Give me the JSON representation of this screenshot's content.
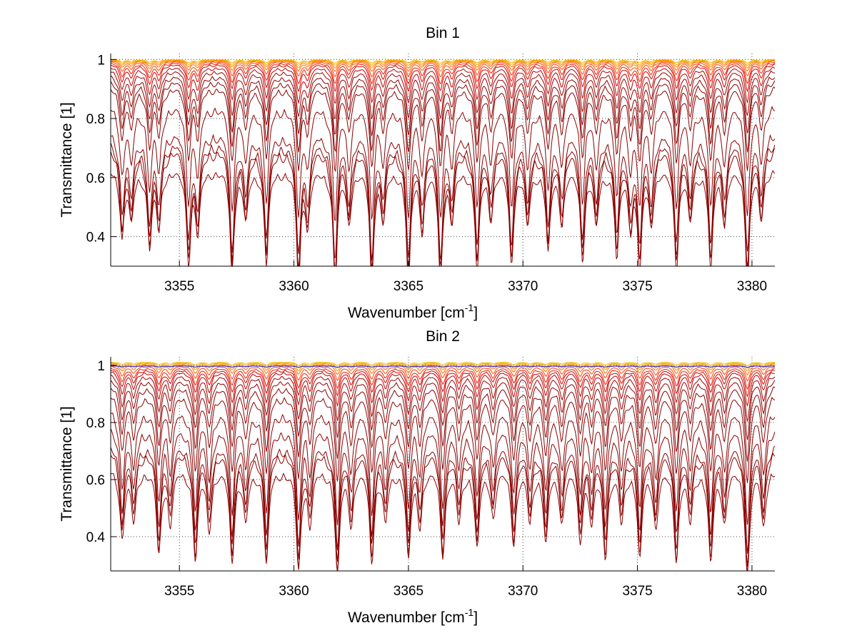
{
  "chart_data": [
    {
      "type": "line",
      "title": "Bin 1",
      "xlabel": "Wavenumber [cm",
      "xlabel_superscript": "-1",
      "xlabel_suffix": "]",
      "ylabel": "Transmittance [1]",
      "xlim": [
        3352,
        3381
      ],
      "ylim": [
        0.3,
        1.02
      ],
      "xticks": [
        3355,
        3360,
        3365,
        3370,
        3375,
        3380
      ],
      "yticks": [
        0.4,
        0.6,
        0.8,
        1
      ],
      "xtick_labels": [
        "3355",
        "3360",
        "3365",
        "3370",
        "3375",
        "3380"
      ],
      "ytick_labels": [
        "0.4",
        "0.6",
        "0.8",
        "1"
      ],
      "grid": "dotted",
      "line_centers": [
        3352.5,
        3352.9,
        3353.7,
        3354.1,
        3355.4,
        3355.8,
        3357.3,
        3357.9,
        3358.8,
        3360.2,
        3360.6,
        3361.8,
        3362.4,
        3363.4,
        3363.9,
        3365.0,
        3365.6,
        3366.4,
        3366.9,
        3368.0,
        3368.6,
        3369.5,
        3370.2,
        3371.1,
        3371.7,
        3372.6,
        3373.2,
        3374.1,
        3374.7,
        3375.1,
        3375.6,
        3376.7,
        3377.3,
        3378.2,
        3378.8,
        3379.8,
        3380.4
      ],
      "line_strengths": [
        0.6,
        0.5,
        0.7,
        0.55,
        0.8,
        0.6,
        0.9,
        0.5,
        0.85,
        0.95,
        0.5,
        1.0,
        0.5,
        0.95,
        0.5,
        1.0,
        0.55,
        0.95,
        0.5,
        0.9,
        0.45,
        0.85,
        0.55,
        0.75,
        0.5,
        0.8,
        0.55,
        0.8,
        0.5,
        0.85,
        0.5,
        0.85,
        0.5,
        0.9,
        0.5,
        0.95,
        0.5
      ],
      "series": [
        {
          "color": "#e8c000",
          "baseline": 1.0,
          "depth": 0.012
        },
        {
          "color": "#f7a800",
          "baseline": 0.999,
          "depth": 0.018
        },
        {
          "color": "#ff8c00",
          "baseline": 0.998,
          "depth": 0.025
        },
        {
          "color": "#ff6a00",
          "baseline": 0.997,
          "depth": 0.035
        },
        {
          "color": "#ff4000",
          "baseline": 0.995,
          "depth": 0.05
        },
        {
          "color": "#ee1c00",
          "baseline": 0.992,
          "depth": 0.07
        },
        {
          "color": "#d50000",
          "baseline": 0.988,
          "depth": 0.09
        },
        {
          "color": "#bb0000",
          "baseline": 0.98,
          "depth": 0.12
        },
        {
          "color": "#a00000",
          "baseline": 0.97,
          "depth": 0.16
        },
        {
          "color": "#900000",
          "baseline": 0.955,
          "depth": 0.2
        },
        {
          "color": "#8a0000",
          "baseline": 0.94,
          "depth": 0.24
        },
        {
          "color": "#8a0000",
          "baseline": 0.92,
          "depth": 0.28
        },
        {
          "color": "#8a0000",
          "baseline": 0.86,
          "depth": 0.38
        },
        {
          "color": "#8a0000",
          "baseline": 0.77,
          "depth": 0.42
        },
        {
          "color": "#8a0000",
          "baseline": 0.74,
          "depth": 0.44
        },
        {
          "color": "#8a0000",
          "baseline": 0.72,
          "depth": 0.46
        },
        {
          "color": "#8a0000",
          "baseline": 0.64,
          "depth": 0.33
        }
      ]
    },
    {
      "type": "line",
      "title": "Bin 2",
      "xlabel": "Wavenumber [cm",
      "xlabel_superscript": "-1",
      "xlabel_suffix": "]",
      "ylabel": "Transmittance [1]",
      "xlim": [
        3352,
        3381
      ],
      "ylim": [
        0.28,
        1.03
      ],
      "xticks": [
        3355,
        3360,
        3365,
        3370,
        3375,
        3380
      ],
      "yticks": [
        0.4,
        0.6,
        0.8,
        1
      ],
      "xtick_labels": [
        "3355",
        "3360",
        "3365",
        "3370",
        "3375",
        "3380"
      ],
      "ytick_labels": [
        "0.4",
        "0.6",
        "0.8",
        "1"
      ],
      "grid": "dotted",
      "line_centers": [
        3352.5,
        3353.0,
        3354.1,
        3354.6,
        3355.7,
        3356.3,
        3357.3,
        3357.9,
        3358.8,
        3360.2,
        3360.7,
        3361.9,
        3362.5,
        3363.4,
        3364.0,
        3365.0,
        3365.5,
        3366.5,
        3367.2,
        3368.0,
        3368.7,
        3369.6,
        3370.3,
        3371.0,
        3371.7,
        3372.5,
        3373.0,
        3373.6,
        3374.3,
        3375.1,
        3375.8,
        3376.7,
        3377.3,
        3378.2,
        3378.8,
        3379.8,
        3380.5
      ],
      "line_strengths": [
        0.65,
        0.5,
        0.8,
        0.5,
        0.85,
        0.55,
        0.85,
        0.5,
        0.9,
        0.95,
        0.5,
        1.0,
        0.5,
        0.85,
        0.5,
        0.85,
        0.5,
        0.8,
        0.5,
        0.75,
        0.45,
        0.7,
        0.5,
        0.7,
        0.5,
        0.65,
        0.5,
        0.8,
        0.5,
        0.85,
        0.55,
        0.85,
        0.5,
        0.9,
        0.5,
        1.0,
        0.55
      ],
      "series": [
        {
          "color": "#e8c000",
          "baseline": 1.012,
          "depth": 0.012
        },
        {
          "color": "#f7a800",
          "baseline": 1.01,
          "depth": 0.018
        },
        {
          "color": "#ff8c00",
          "baseline": 1.008,
          "depth": 0.025
        },
        {
          "color": "#ff6a00",
          "baseline": 1.005,
          "depth": 0.035
        },
        {
          "color": "#2222cc",
          "baseline": 0.998,
          "depth": 0.004
        },
        {
          "color": "#ff4000",
          "baseline": 1.0,
          "depth": 0.05
        },
        {
          "color": "#ee1c00",
          "baseline": 0.995,
          "depth": 0.07
        },
        {
          "color": "#d50000",
          "baseline": 0.99,
          "depth": 0.09
        },
        {
          "color": "#bb0000",
          "baseline": 0.985,
          "depth": 0.12
        },
        {
          "color": "#a00000",
          "baseline": 0.975,
          "depth": 0.16
        },
        {
          "color": "#900000",
          "baseline": 0.96,
          "depth": 0.2
        },
        {
          "color": "#8a0000",
          "baseline": 0.94,
          "depth": 0.25
        },
        {
          "color": "#8a0000",
          "baseline": 0.91,
          "depth": 0.3
        },
        {
          "color": "#8a0000",
          "baseline": 0.86,
          "depth": 0.4
        },
        {
          "color": "#8a0000",
          "baseline": 0.8,
          "depth": 0.42
        },
        {
          "color": "#8a0000",
          "baseline": 0.74,
          "depth": 0.4
        },
        {
          "color": "#8a0000",
          "baseline": 0.72,
          "depth": 0.42
        },
        {
          "color": "#8a0000",
          "baseline": 0.65,
          "depth": 0.36
        }
      ]
    }
  ]
}
